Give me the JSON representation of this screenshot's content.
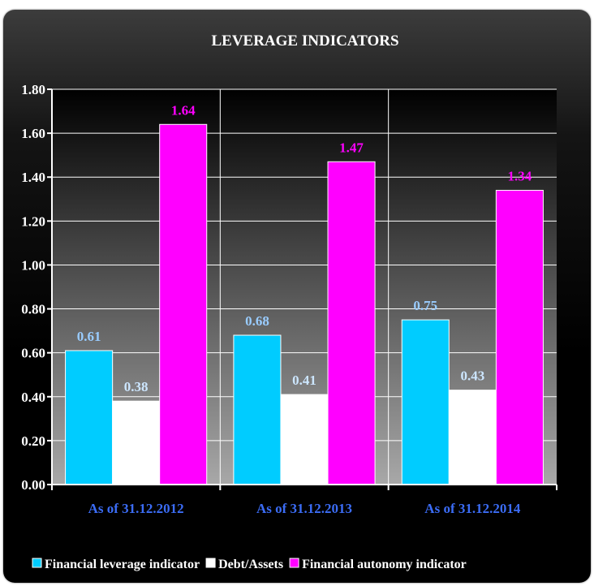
{
  "chart_data": {
    "type": "bar",
    "title": "LEVERAGE INDICATORS",
    "categories": [
      "As of 31.12.2012",
      "As of 31.12.2013",
      "As of 31.12.2014"
    ],
    "series": [
      {
        "name": "Financial leverage indicator",
        "values": [
          0.61,
          0.68,
          0.75
        ],
        "labels": [
          "0.61",
          "0.68",
          "0.75"
        ],
        "color": "#00ccff",
        "label_color": "#99ccff"
      },
      {
        "name": "Debt/Assets",
        "values": [
          0.38,
          0.41,
          0.43
        ],
        "labels": [
          "0.38",
          "0.41",
          "0.43"
        ],
        "color": "#ffffff",
        "label_color": "#cce6ff"
      },
      {
        "name": "Financial autonomy indicator",
        "values": [
          1.64,
          1.47,
          1.34
        ],
        "labels": [
          "1.64",
          "1.47",
          "1.34"
        ],
        "color": "#ff00ff",
        "label_color": "#ff00ff"
      }
    ],
    "ylim": [
      0,
      1.8
    ],
    "yticks": [
      "0.00",
      "0.20",
      "0.40",
      "0.60",
      "0.80",
      "1.00",
      "1.20",
      "1.40",
      "1.60",
      "1.80"
    ],
    "grid": true,
    "legend_position": "bottom",
    "xlabel": "",
    "ylabel": ""
  }
}
